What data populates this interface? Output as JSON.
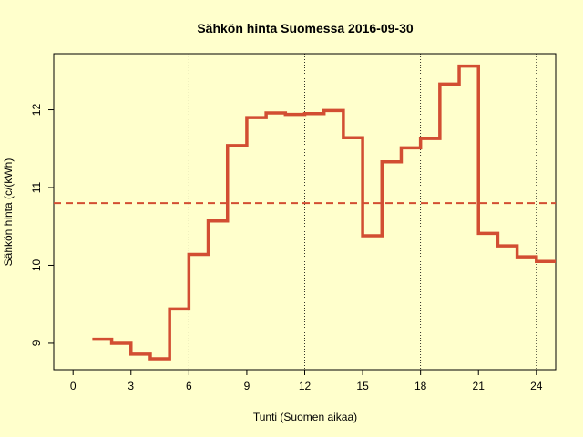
{
  "chart_data": {
    "type": "line",
    "title": "Sähkön hinta Suomessa 2016-09-30",
    "xlabel": "Tunti (Suomen aikaa)",
    "ylabel": "Sähkön hinta (c/(kWh)",
    "xlim": [
      -1,
      25
    ],
    "ylim": [
      8.66,
      12.72
    ],
    "xticks": [
      0,
      3,
      6,
      9,
      12,
      15,
      18,
      21,
      24
    ],
    "yticks": [
      9,
      10,
      11,
      12
    ],
    "vertical_reference_lines": [
      6,
      12,
      18,
      24
    ],
    "reference_hline": 10.8,
    "grid": false,
    "step_style": "post",
    "x": [
      1,
      2,
      3,
      4,
      5,
      6,
      7,
      8,
      9,
      10,
      11,
      12,
      13,
      14,
      15,
      16,
      17,
      18,
      19,
      20,
      21,
      22,
      23,
      24
    ],
    "values": [
      9.05,
      9.0,
      8.86,
      8.8,
      9.44,
      10.14,
      10.57,
      11.54,
      11.9,
      11.96,
      11.94,
      11.95,
      11.99,
      11.64,
      10.38,
      11.33,
      11.51,
      11.63,
      12.33,
      12.56,
      10.41,
      10.25,
      10.11,
      10.05
    ],
    "colors": {
      "series": "#D24E32",
      "reference_line": "#D24E32",
      "vlines": "#000000",
      "background": "#FFFFCC"
    }
  }
}
